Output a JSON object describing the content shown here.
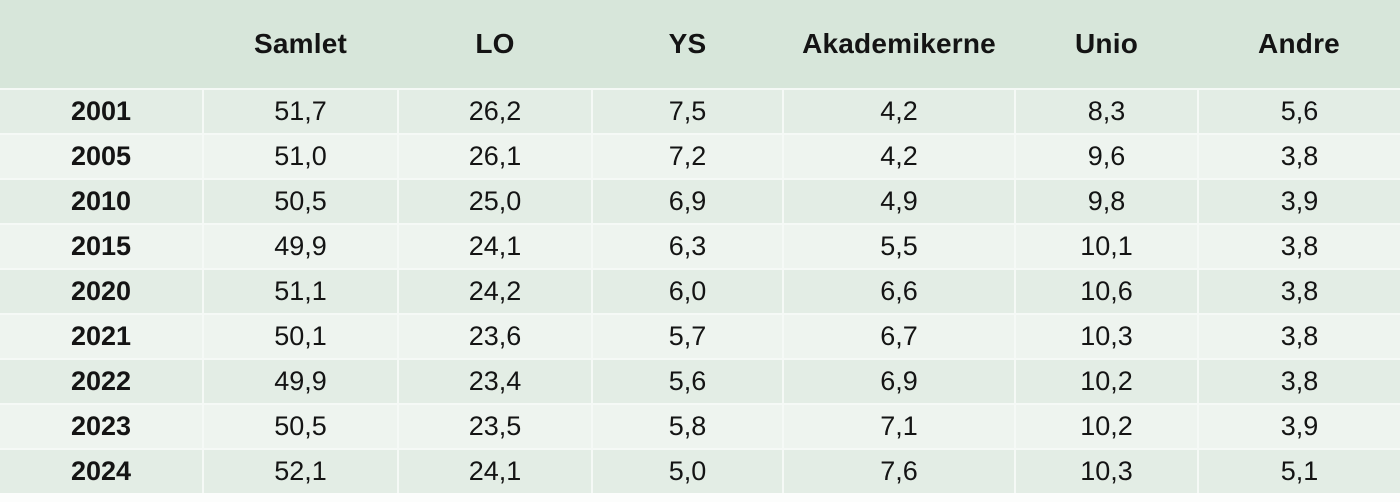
{
  "chart_data": {
    "type": "table",
    "columns": [
      "",
      "Samlet",
      "LO",
      "YS",
      "Akademikerne",
      "Unio",
      "Andre"
    ],
    "rows": [
      {
        "year": "2001",
        "values": [
          "51,7",
          "26,2",
          "7,5",
          "4,2",
          "8,3",
          "5,6"
        ]
      },
      {
        "year": "2005",
        "values": [
          "51,0",
          "26,1",
          "7,2",
          "4,2",
          "9,6",
          "3,8"
        ]
      },
      {
        "year": "2010",
        "values": [
          "50,5",
          "25,0",
          "6,9",
          "4,9",
          "9,8",
          "3,9"
        ]
      },
      {
        "year": "2015",
        "values": [
          "49,9",
          "24,1",
          "6,3",
          "5,5",
          "10,1",
          "3,8"
        ]
      },
      {
        "year": "2020",
        "values": [
          "51,1",
          "24,2",
          "6,0",
          "6,6",
          "10,6",
          "3,8"
        ]
      },
      {
        "year": "2021",
        "values": [
          "50,1",
          "23,6",
          "5,7",
          "6,7",
          "10,3",
          "3,8"
        ]
      },
      {
        "year": "2022",
        "values": [
          "49,9",
          "23,4",
          "5,6",
          "6,9",
          "10,2",
          "3,8"
        ]
      },
      {
        "year": "2023",
        "values": [
          "50,5",
          "23,5",
          "5,8",
          "7,1",
          "10,2",
          "3,9"
        ]
      },
      {
        "year": "2024",
        "values": [
          "52,1",
          "24,1",
          "5,0",
          "7,6",
          "10,3",
          "5,1"
        ]
      }
    ],
    "layout": {
      "header_position": "top",
      "grid": "light-separators-between-cells",
      "zebra_striping": true
    },
    "colors": {
      "header_bg": "#d7e6da",
      "row_odd_bg": "#e3ede5",
      "row_even_bg": "#eef4ef",
      "separator": "#f5f9f6",
      "text": "#141414",
      "page_bg": "#fcfdfc"
    }
  }
}
